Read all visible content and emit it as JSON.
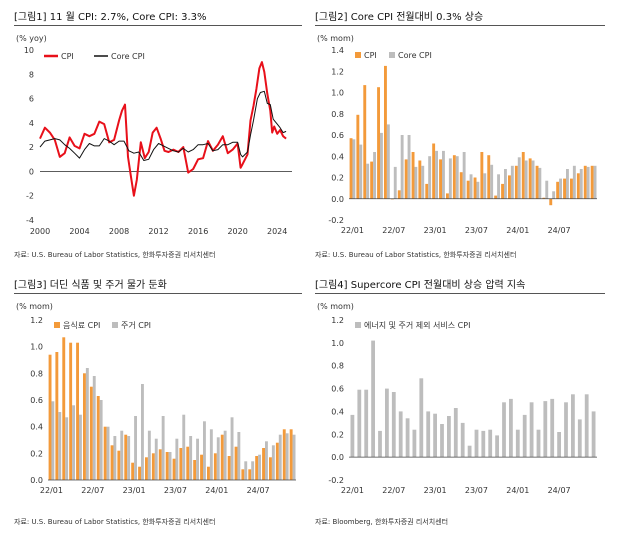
{
  "charts": [
    {
      "title": "[그림1]   11 월 CPI: 2.7%, Core CPI: 3.3%",
      "source": "자료: U.S. Bureau of Labor Statistics, 한화투자증권 리서치센터",
      "chart_data": {
        "type": "line",
        "unit": "(% yoy)",
        "ylim": [
          -4,
          10
        ],
        "yticks": [
          -4,
          -2,
          0,
          2,
          4,
          6,
          8,
          10
        ],
        "xlim": [
          2000,
          2025.5
        ],
        "xticks": [
          2000,
          2004,
          2008,
          2012,
          2016,
          2020,
          2024
        ],
        "legend_position": "top-left",
        "series": [
          {
            "name": "CPI",
            "color": "#e8101a",
            "width": 2,
            "x": [
              2000,
              2000.5,
              2001,
              2001.5,
              2002,
              2002.5,
              2003,
              2003.5,
              2004,
              2004.5,
              2005,
              2005.5,
              2006,
              2006.5,
              2007,
              2007.5,
              2008,
              2008.3,
              2008.6,
              2008.9,
              2009.2,
              2009.5,
              2009.8,
              2010.2,
              2010.6,
              2011,
              2011.4,
              2011.8,
              2012.2,
              2012.6,
              2013,
              2013.5,
              2014,
              2014.5,
              2015,
              2015.5,
              2016,
              2016.5,
              2017,
              2017.5,
              2018,
              2018.5,
              2019,
              2019.5,
              2020,
              2020.3,
              2020.5,
              2021,
              2021.3,
              2021.6,
              2021.9,
              2022.2,
              2022.45,
              2022.7,
              2023,
              2023.3,
              2023.5,
              2023.7,
              2024,
              2024.3,
              2024.6,
              2024.9
            ],
            "y": [
              2.7,
              3.6,
              3.2,
              2.6,
              1.2,
              1.5,
              2.8,
              2.1,
              1.9,
              3.1,
              2.9,
              3.1,
              4.1,
              3.9,
              2.4,
              2.6,
              4.2,
              5.0,
              5.5,
              1.2,
              -0.4,
              -2.0,
              -0.7,
              2.4,
              1.1,
              1.6,
              3.2,
              3.6,
              2.7,
              1.7,
              1.6,
              1.8,
              1.6,
              2.0,
              -0.1,
              0.2,
              1.0,
              1.1,
              2.5,
              1.7,
              2.2,
              2.9,
              1.5,
              1.8,
              2.3,
              0.3,
              0.6,
              1.4,
              4.2,
              5.4,
              6.8,
              8.5,
              9.0,
              8.2,
              6.4,
              5.0,
              3.2,
              3.7,
              3.1,
              3.4,
              2.9,
              2.7
            ]
          },
          {
            "name": "Core CPI",
            "color": "#111111",
            "width": 1,
            "x": [
              2000,
              2000.5,
              2001,
              2001.5,
              2002,
              2002.5,
              2003,
              2003.5,
              2004,
              2004.5,
              2005,
              2005.5,
              2006,
              2006.5,
              2007,
              2007.5,
              2008,
              2008.5,
              2009,
              2009.5,
              2010,
              2010.5,
              2011,
              2011.5,
              2012,
              2012.5,
              2013,
              2013.5,
              2014,
              2014.5,
              2015,
              2015.5,
              2016,
              2016.5,
              2017,
              2017.5,
              2018,
              2018.5,
              2019,
              2019.5,
              2020,
              2020.3,
              2020.5,
              2021,
              2021.3,
              2021.6,
              2022,
              2022.3,
              2022.7,
              2023,
              2023.3,
              2023.6,
              2024,
              2024.3,
              2024.6,
              2024.9
            ],
            "y": [
              2.0,
              2.5,
              2.6,
              2.7,
              2.6,
              2.2,
              1.9,
              1.5,
              1.1,
              1.8,
              2.3,
              2.1,
              2.1,
              2.7,
              2.5,
              2.2,
              2.5,
              2.5,
              1.7,
              1.5,
              1.6,
              0.9,
              1.0,
              1.8,
              2.3,
              2.1,
              1.9,
              1.7,
              1.6,
              1.9,
              1.6,
              1.8,
              2.2,
              2.2,
              2.3,
              1.7,
              1.8,
              2.2,
              2.2,
              2.4,
              2.4,
              1.4,
              1.2,
              1.6,
              3.0,
              4.2,
              6.0,
              6.5,
              6.6,
              5.6,
              5.5,
              4.3,
              3.9,
              3.6,
              3.2,
              3.3
            ]
          }
        ]
      }
    },
    {
      "title": "[그림2]   Core CPI 전월대비 0.3% 상승",
      "source": "자료: U.S. Bureau of Labor Statistics, 한화투자증권 리서치센터",
      "chart_data": {
        "type": "bar",
        "unit": "(% mom)",
        "ylim": [
          -0.2,
          1.4
        ],
        "yticks": [
          -0.2,
          0.0,
          0.2,
          0.4,
          0.6,
          0.8,
          1.0,
          1.2,
          1.4
        ],
        "tick_labels": [
          {
            "i": 0,
            "label": "22/01"
          },
          {
            "i": 6,
            "label": "22/07"
          },
          {
            "i": 12,
            "label": "23/01"
          },
          {
            "i": 18,
            "label": "23/07"
          },
          {
            "i": 24,
            "label": "24/01"
          },
          {
            "i": 30,
            "label": "24/07"
          }
        ],
        "legend_position": "top-left",
        "series": [
          {
            "name": "CPI",
            "color": "#f39a3a",
            "values": [
              0.57,
              0.79,
              1.07,
              0.35,
              1.05,
              1.25,
              0.0,
              0.08,
              0.37,
              0.44,
              0.36,
              0.14,
              0.52,
              0.37,
              0.05,
              0.41,
              0.25,
              0.17,
              0.2,
              0.44,
              0.41,
              0.03,
              0.14,
              0.22,
              0.31,
              0.44,
              0.38,
              0.31,
              0.01,
              -0.06,
              0.16,
              0.19,
              0.19,
              0.24,
              0.31,
              0.31
            ]
          },
          {
            "name": "Core CPI",
            "color": "#bdbdbd",
            "values": [
              0.56,
              0.51,
              0.33,
              0.44,
              0.62,
              0.7,
              0.3,
              0.6,
              0.6,
              0.3,
              0.31,
              0.4,
              0.45,
              0.45,
              0.38,
              0.4,
              0.44,
              0.23,
              0.16,
              0.24,
              0.32,
              0.23,
              0.28,
              0.31,
              0.39,
              0.36,
              0.36,
              0.29,
              0.17,
              0.07,
              0.19,
              0.28,
              0.31,
              0.28,
              0.3,
              0.31
            ]
          }
        ]
      }
    },
    {
      "title": "[그림3]   더딘 식품 및 주거 물가 둔화",
      "source": "자료: U.S. Bureau of Labor Statistics, 한화투자증권 리서치센터",
      "chart_data": {
        "type": "bar",
        "unit": "(% mom)",
        "ylim": [
          0.0,
          1.2
        ],
        "yticks": [
          0.0,
          0.2,
          0.4,
          0.6,
          0.8,
          1.0,
          1.2
        ],
        "tick_labels": [
          {
            "i": 0,
            "label": "22/01"
          },
          {
            "i": 6,
            "label": "22/07"
          },
          {
            "i": 12,
            "label": "23/01"
          },
          {
            "i": 18,
            "label": "23/07"
          },
          {
            "i": 24,
            "label": "24/01"
          },
          {
            "i": 30,
            "label": "24/07"
          }
        ],
        "legend_position": "top-left",
        "series": [
          {
            "name": "음식료 CPI",
            "color": "#f39a3a",
            "values": [
              0.94,
              0.96,
              1.07,
              1.03,
              1.03,
              0.8,
              0.7,
              0.63,
              0.4,
              0.26,
              0.22,
              0.34,
              0.13,
              0.1,
              0.17,
              0.2,
              0.23,
              0.21,
              0.16,
              0.24,
              0.25,
              0.15,
              0.19,
              0.1,
              0.2,
              0.34,
              0.18,
              0.25,
              0.08,
              0.08,
              0.18,
              0.24,
              0.17,
              0.28,
              0.38,
              0.38
            ]
          },
          {
            "name": "주거 CPI",
            "color": "#bdbdbd",
            "values": [
              0.59,
              0.51,
              0.47,
              0.56,
              0.49,
              0.84,
              0.78,
              0.6,
              0.4,
              0.33,
              0.37,
              0.33,
              0.48,
              0.72,
              0.37,
              0.31,
              0.48,
              0.21,
              0.31,
              0.49,
              0.33,
              0.31,
              0.44,
              0.38,
              0.32,
              0.37,
              0.47,
              0.36,
              0.14,
              0.14,
              0.19,
              0.29,
              0.26,
              0.34,
              0.35,
              0.34
            ]
          }
        ]
      }
    },
    {
      "title": "[그림4]   Supercore CPI 전월대비 상승 압력 지속",
      "source": "자료: Bloomberg, 한화투자증권 리서치센터",
      "chart_data": {
        "type": "bar",
        "unit": "(% mom)",
        "ylim": [
          -0.2,
          1.2
        ],
        "yticks": [
          -0.2,
          0.0,
          0.2,
          0.4,
          0.6,
          0.8,
          1.0,
          1.2
        ],
        "tick_labels": [
          {
            "i": 0,
            "label": "22/01"
          },
          {
            "i": 6,
            "label": "22/07"
          },
          {
            "i": 12,
            "label": "23/01"
          },
          {
            "i": 18,
            "label": "23/07"
          },
          {
            "i": 24,
            "label": "24/01"
          },
          {
            "i": 30,
            "label": "24/07"
          }
        ],
        "legend_position": "top-left",
        "series": [
          {
            "name": "에너지 및 주거 제외 서비스 CPI",
            "color": "#bdbdbd",
            "values": [
              0.37,
              0.59,
              0.59,
              1.02,
              0.23,
              0.6,
              0.57,
              0.4,
              0.34,
              0.24,
              0.69,
              0.4,
              0.38,
              0.29,
              0.36,
              0.43,
              0.3,
              0.1,
              0.24,
              0.23,
              0.24,
              0.19,
              0.48,
              0.51,
              0.24,
              0.37,
              0.48,
              0.24,
              0.49,
              0.51,
              0.22,
              0.48,
              0.55,
              0.33,
              0.55,
              0.4
            ]
          }
        ]
      }
    }
  ]
}
